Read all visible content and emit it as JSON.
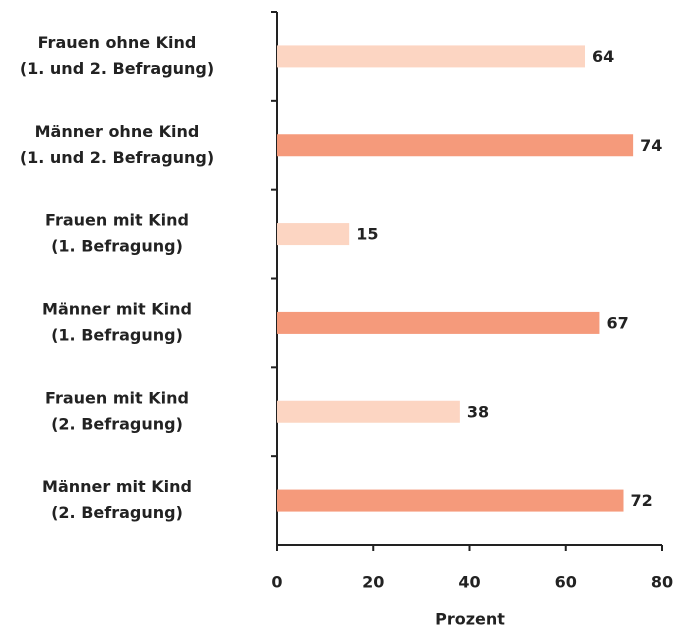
{
  "chart_data": {
    "type": "barh",
    "categories": [
      [
        "Frauen ohne Kind",
        "(1. und 2. Befragung)"
      ],
      [
        "Männer ohne Kind",
        "(1. und 2. Befragung)"
      ],
      [
        "Frauen mit Kind",
        "(1. Befragung)"
      ],
      [
        "Männer mit Kind",
        "(1. Befragung)"
      ],
      [
        "Frauen mit Kind",
        "(2. Befragung)"
      ],
      [
        "Männer mit Kind",
        "(2. Befragung)"
      ]
    ],
    "values": [
      64,
      74,
      15,
      67,
      38,
      72
    ],
    "colors": [
      "#fcd5c2",
      "#f59a7b",
      "#fcd5c2",
      "#f59a7b",
      "#fcd5c2",
      "#f59a7b"
    ],
    "xlabel": "Prozent",
    "xlim": [
      0,
      80
    ],
    "xticks": [
      0,
      20,
      40,
      60,
      80
    ]
  }
}
